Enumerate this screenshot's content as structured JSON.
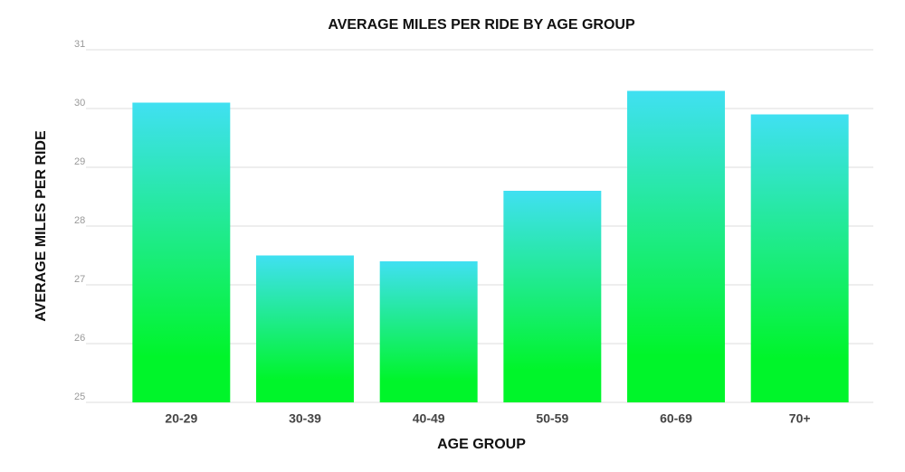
{
  "chart_data": {
    "type": "bar",
    "title": "AVERAGE MILES PER RIDE BY AGE GROUP",
    "x_label": "AGE GROUP",
    "y_label": "AVERAGE MILES PER RIDE",
    "categories": [
      "20-29",
      "30-39",
      "40-49",
      "50-59",
      "60-69",
      "70+"
    ],
    "values": [
      30.1,
      27.5,
      27.4,
      28.6,
      30.3,
      29.9
    ],
    "color_top": "#40e0f2",
    "color_bottom": "#00f52a",
    "ylim": [
      25,
      31
    ],
    "yticks": [
      25,
      26,
      27,
      28,
      29,
      30,
      31
    ],
    "grid": true
  }
}
